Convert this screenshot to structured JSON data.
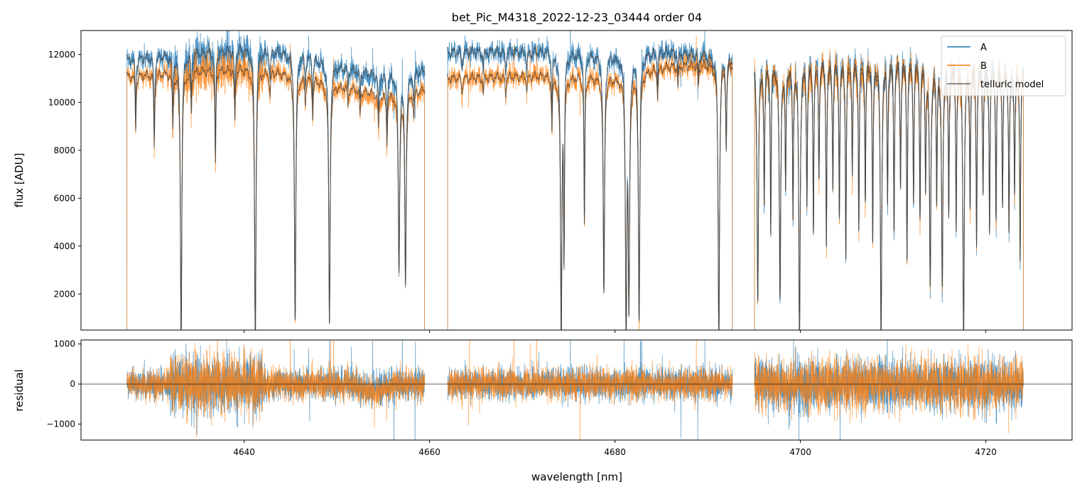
{
  "chart_data": [
    {
      "type": "line",
      "title": "bet_Pic_M4318_2022-12-23_03444  order 04",
      "xlabel": "wavelength [nm]",
      "ylabel": "flux [ADU]",
      "xlim": [
        4622.4,
        4729.3
      ],
      "ylim": [
        500,
        13000
      ],
      "xticks": [
        4640,
        4660,
        4680,
        4700,
        4720
      ],
      "yticks": [
        2000,
        4000,
        6000,
        8000,
        10000,
        12000
      ],
      "grid": false,
      "legend": {
        "placement": "top-right",
        "entries": [
          "A",
          "B",
          "telluric model"
        ]
      },
      "colors": {
        "A": "#1f77b4",
        "B": "#ff7f0e",
        "telluric model": "#444444"
      },
      "segments": [
        {
          "range": [
            4627.3,
            4659.5
          ],
          "continuum_A": [
            [
              4627.3,
              11800
            ],
            [
              4640,
              12200
            ],
            [
              4646,
              12000
            ],
            [
              4650,
              11500
            ],
            [
              4655,
              11100
            ],
            [
              4659.5,
              11300
            ]
          ],
          "continuum_B": [
            [
              4627.3,
              11100
            ],
            [
              4640,
              11400
            ],
            [
              4646,
              11100
            ],
            [
              4650,
              10700
            ],
            [
              4655,
              10300
            ],
            [
              4659.5,
              10500
            ]
          ]
        },
        {
          "range": [
            4661.9,
            4692.7
          ],
          "continuum_A": [
            [
              4661.9,
              12100
            ],
            [
              4672,
              12100
            ],
            [
              4680,
              11900
            ],
            [
              4686,
              12100
            ],
            [
              4692.7,
              11800
            ]
          ],
          "continuum_B": [
            [
              4661.9,
              11000
            ],
            [
              4672,
              11100
            ],
            [
              4680,
              11000
            ],
            [
              4686,
              11500
            ],
            [
              4692.7,
              11600
            ]
          ]
        },
        {
          "range": [
            4695.0,
            4724.1
          ],
          "continuum_A": [
            [
              4695.0,
              11600
            ],
            [
              4710,
              11900
            ],
            [
              4724.1,
              11400
            ]
          ],
          "continuum_B": [
            [
              4695.0,
              11500
            ],
            [
              4710,
              11700
            ],
            [
              4724.1,
              11300
            ]
          ]
        }
      ],
      "telluric_lines": [
        [
          4628.3,
          0.2
        ],
        [
          4630.3,
          0.28
        ],
        [
          4632.3,
          0.2
        ],
        [
          4633.2,
          1.0
        ],
        [
          4634.3,
          0.15
        ],
        [
          4636.9,
          0.35
        ],
        [
          4639.0,
          0.2
        ],
        [
          4641.2,
          1.0
        ],
        [
          4642.8,
          0.1
        ],
        [
          4645.5,
          0.92
        ],
        [
          4646.6,
          0.1
        ],
        [
          4647.4,
          0.15
        ],
        [
          4649.2,
          0.93
        ],
        [
          4651.2,
          0.08
        ],
        [
          4652.5,
          0.1
        ],
        [
          4654.5,
          0.15
        ],
        [
          4655.4,
          0.2
        ],
        [
          4656.7,
          0.72
        ],
        [
          4657.4,
          0.77
        ],
        [
          4658.3,
          0.1
        ],
        [
          4663.5,
          0.06
        ],
        [
          4665.8,
          0.06
        ],
        [
          4668.2,
          0.07
        ],
        [
          4670.5,
          0.06
        ],
        [
          4673.2,
          0.2
        ],
        [
          4674.2,
          1.0
        ],
        [
          4674.5,
          0.7
        ],
        [
          4676.7,
          0.56
        ],
        [
          4678.8,
          0.82
        ],
        [
          4681.2,
          1.0
        ],
        [
          4681.5,
          0.9
        ],
        [
          4682.6,
          0.92
        ],
        [
          4684.6,
          0.1
        ],
        [
          4686.8,
          0.08
        ],
        [
          4689.0,
          0.08
        ],
        [
          4691.2,
          1.0
        ],
        [
          4692.0,
          0.3
        ],
        [
          4695.4,
          0.85
        ],
        [
          4696.1,
          0.5
        ],
        [
          4696.8,
          0.6
        ],
        [
          4697.8,
          0.85
        ],
        [
          4698.4,
          0.45
        ],
        [
          4699.2,
          0.55
        ],
        [
          4699.9,
          1.0
        ],
        [
          4700.7,
          0.5
        ],
        [
          4701.4,
          0.6
        ],
        [
          4702.0,
          0.4
        ],
        [
          4702.8,
          0.65
        ],
        [
          4703.5,
          0.45
        ],
        [
          4704.2,
          0.55
        ],
        [
          4704.9,
          0.7
        ],
        [
          4705.6,
          0.4
        ],
        [
          4706.3,
          0.6
        ],
        [
          4707.0,
          0.5
        ],
        [
          4707.8,
          0.65
        ],
        [
          4708.7,
          1.0
        ],
        [
          4709.4,
          0.5
        ],
        [
          4710.1,
          0.6
        ],
        [
          4710.8,
          0.45
        ],
        [
          4711.5,
          0.7
        ],
        [
          4712.2,
          0.5
        ],
        [
          4712.9,
          0.55
        ],
        [
          4713.5,
          0.45
        ],
        [
          4714.0,
          0.8
        ],
        [
          4714.7,
          0.5
        ],
        [
          4715.3,
          0.8
        ],
        [
          4716.0,
          0.55
        ],
        [
          4716.8,
          0.6
        ],
        [
          4717.6,
          1.0
        ],
        [
          4718.3,
          0.5
        ],
        [
          4719.0,
          0.65
        ],
        [
          4719.7,
          0.45
        ],
        [
          4720.4,
          0.6
        ],
        [
          4721.1,
          0.55
        ],
        [
          4721.8,
          0.5
        ],
        [
          4722.5,
          0.6
        ],
        [
          4723.1,
          0.45
        ],
        [
          4723.7,
          0.7
        ]
      ]
    },
    {
      "type": "line",
      "xlabel": "wavelength [nm]",
      "ylabel": "residual",
      "xlim": [
        4622.4,
        4729.3
      ],
      "ylim": [
        -1400,
        1100
      ],
      "xticks": [
        4640,
        4660,
        4680,
        4700,
        4720
      ],
      "yticks": [
        -1000,
        0,
        1000
      ],
      "zero_line": true,
      "series": [
        "A",
        "B"
      ]
    }
  ]
}
